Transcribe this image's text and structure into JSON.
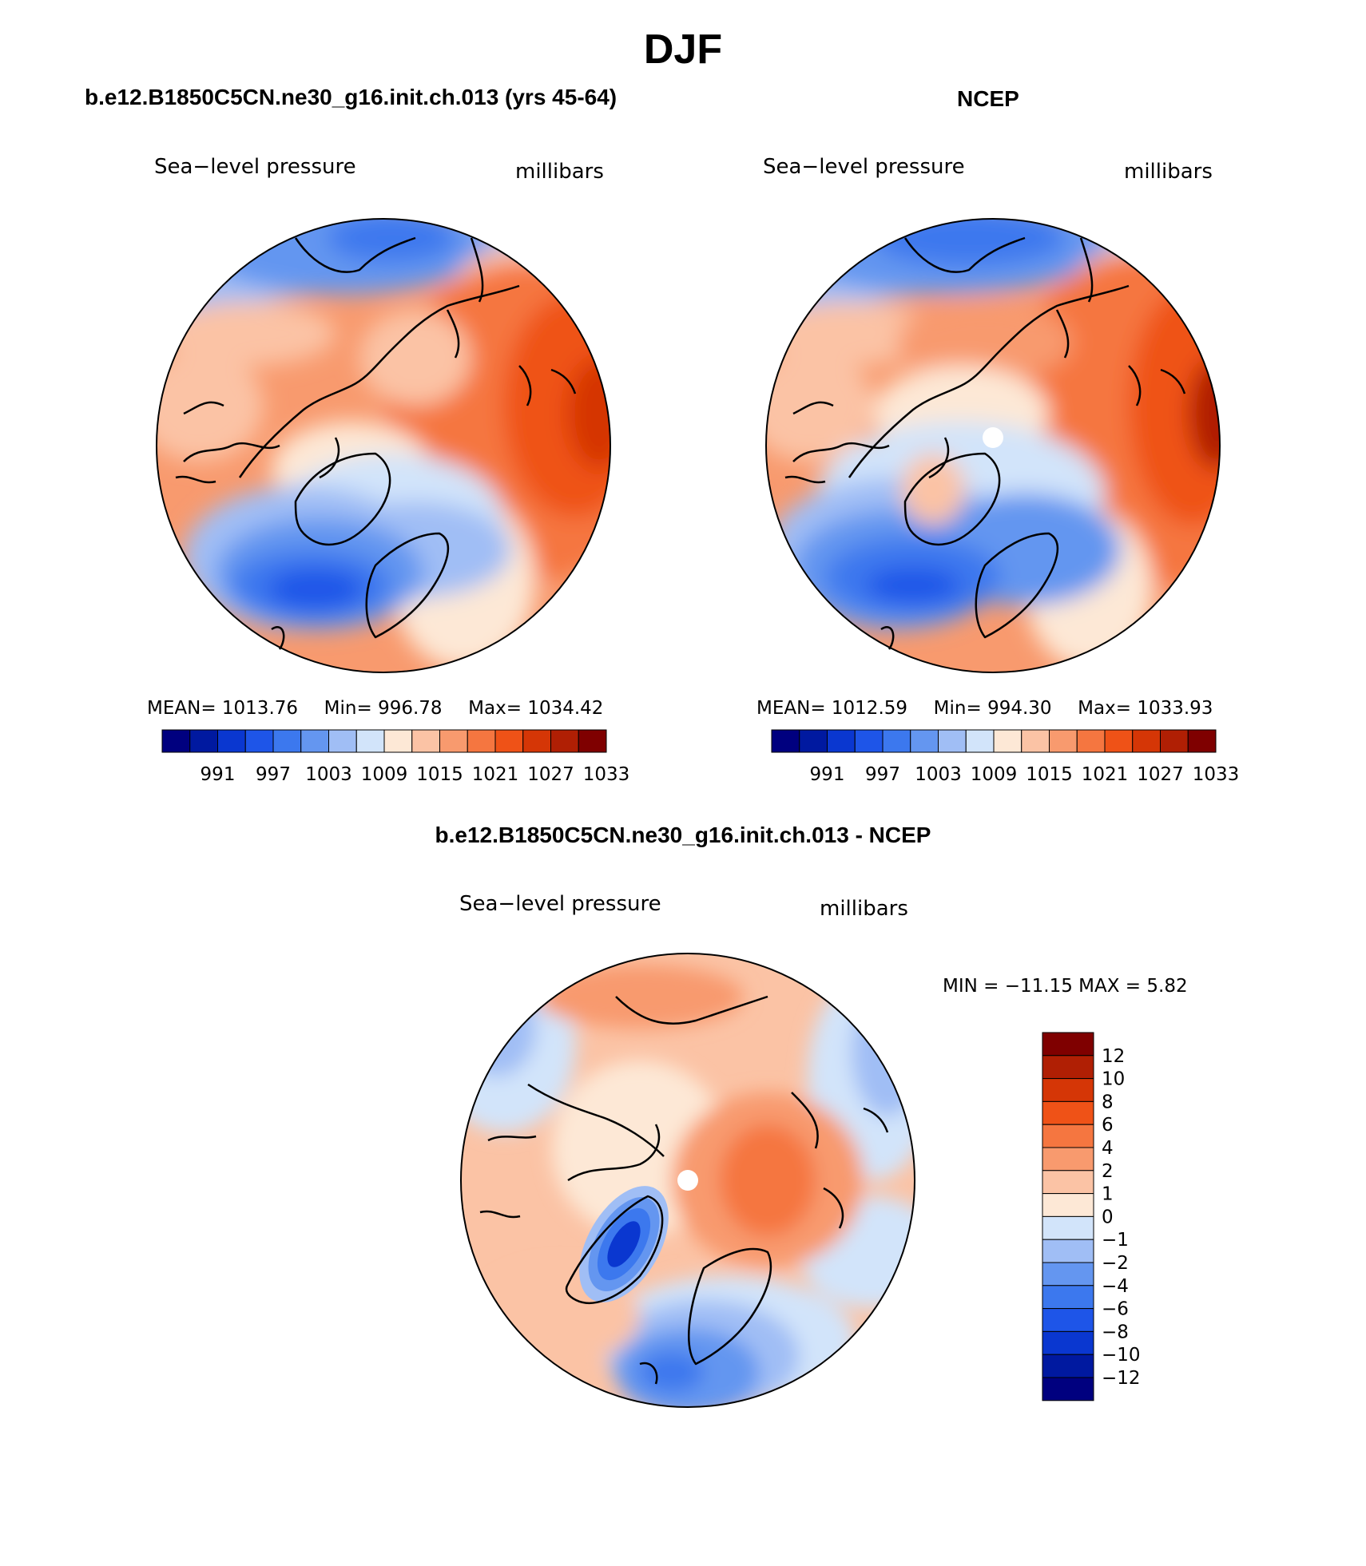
{
  "title": "DJF",
  "panels": [
    {
      "heading": "b.e12.B1850C5CN.ne30_g16.init.ch.013 (yrs 45-64)",
      "left_label": "Sea−level pressure",
      "right_label": "millibars",
      "stats": {
        "mean_label": "MEAN=",
        "mean": "1013.76",
        "min_label": "Min=",
        "min": "996.78",
        "max_label": "Max=",
        "max": "1034.42"
      },
      "colorbar_ticks": [
        "991",
        "997",
        "1003",
        "1009",
        "1015",
        "1021",
        "1027",
        "1033"
      ]
    },
    {
      "heading": "NCEP",
      "left_label": "Sea−level pressure",
      "right_label": "millibars",
      "stats": {
        "mean_label": "MEAN=",
        "mean": "1012.59",
        "min_label": "Min=",
        "min": "994.30",
        "max_label": "Max=",
        "max": "1033.93"
      },
      "colorbar_ticks": [
        "991",
        "997",
        "1003",
        "1009",
        "1015",
        "1021",
        "1027",
        "1033"
      ]
    },
    {
      "heading": "b.e12.B1850C5CN.ne30_g16.init.ch.013 - NCEP",
      "left_label": "Sea−level pressure",
      "right_label": "millibars",
      "minmax_text": "MIN = −11.15 MAX =    5.82",
      "colorbar_ticks": [
        "12",
        "10",
        "8",
        "6",
        "4",
        "2",
        "1",
        "0",
        "−1",
        "−2",
        "−4",
        "−6",
        "−8",
        "−10",
        "−12"
      ]
    }
  ],
  "palette": [
    "#00007f",
    "#0019a0",
    "#0a37d0",
    "#1e55e8",
    "#3c78ee",
    "#6496f0",
    "#a0bef5",
    "#d2e4fa",
    "#fde8d6",
    "#fbc3a5",
    "#f89a6e",
    "#f57640",
    "#ef5217",
    "#d53606",
    "#b01f04",
    "#7f0000"
  ]
}
